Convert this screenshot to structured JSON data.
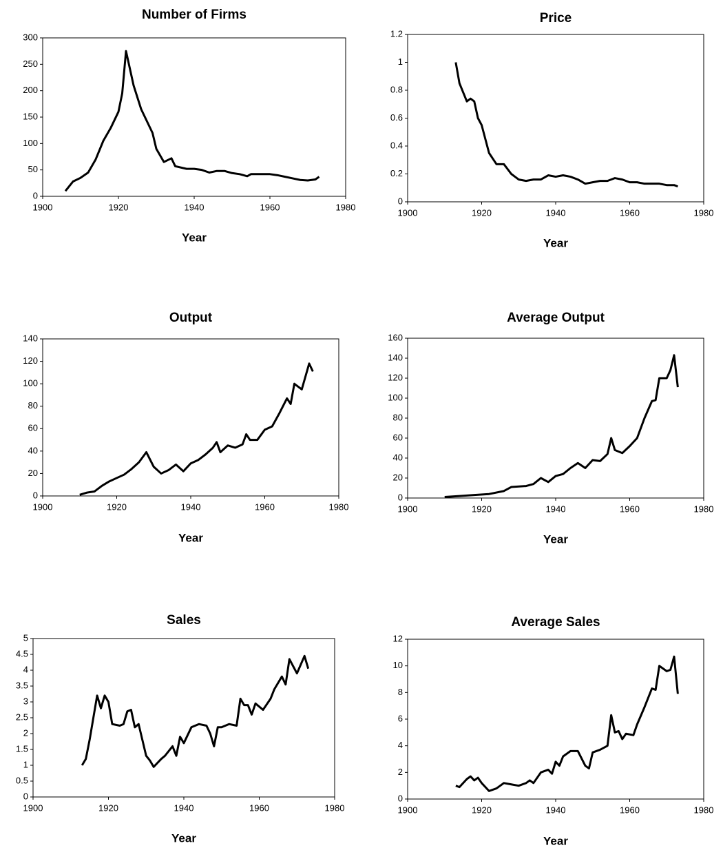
{
  "chart_data": [
    {
      "type": "line",
      "title": "Number of Firms",
      "x_label": "Year",
      "color": "#000000",
      "x": [
        1906,
        1908,
        1910,
        1912,
        1914,
        1916,
        1918,
        1920,
        1921,
        1922,
        1924,
        1926,
        1928,
        1929,
        1930,
        1932,
        1934,
        1935,
        1938,
        1940,
        1942,
        1944,
        1946,
        1948,
        1950,
        1952,
        1954,
        1955,
        1958,
        1960,
        1962,
        1964,
        1966,
        1968,
        1970,
        1972,
        1973
      ],
      "values": [
        10,
        28,
        35,
        45,
        70,
        105,
        130,
        160,
        195,
        275,
        210,
        165,
        135,
        120,
        90,
        65,
        72,
        57,
        52,
        52,
        50,
        45,
        48,
        48,
        44,
        42,
        38,
        42,
        42,
        42,
        40,
        37,
        34,
        31,
        30,
        32,
        37
      ],
      "xlim": [
        1900,
        1980
      ],
      "ylim": [
        0,
        300
      ],
      "xticks": [
        1900,
        1920,
        1940,
        1960,
        1980
      ],
      "yticks": [
        0,
        50,
        100,
        150,
        200,
        250,
        300
      ]
    },
    {
      "type": "line",
      "title": "Price",
      "x_label": "Year",
      "color": "#000000",
      "x": [
        1913,
        1914,
        1916,
        1917,
        1918,
        1919,
        1920,
        1922,
        1924,
        1926,
        1928,
        1930,
        1932,
        1934,
        1936,
        1938,
        1940,
        1942,
        1944,
        1946,
        1948,
        1950,
        1952,
        1954,
        1956,
        1958,
        1960,
        1962,
        1964,
        1966,
        1968,
        1970,
        1972,
        1973
      ],
      "values": [
        1.0,
        0.85,
        0.72,
        0.74,
        0.72,
        0.6,
        0.55,
        0.35,
        0.27,
        0.27,
        0.2,
        0.16,
        0.15,
        0.16,
        0.16,
        0.19,
        0.18,
        0.19,
        0.18,
        0.16,
        0.13,
        0.14,
        0.15,
        0.15,
        0.17,
        0.16,
        0.14,
        0.14,
        0.13,
        0.13,
        0.13,
        0.12,
        0.12,
        0.11
      ],
      "xlim": [
        1900,
        1980
      ],
      "ylim": [
        0,
        1.2
      ],
      "xticks": [
        1900,
        1920,
        1940,
        1960,
        1980
      ],
      "yticks": [
        0,
        0.2,
        0.4,
        0.6,
        0.8,
        1,
        1.2
      ]
    },
    {
      "type": "line",
      "title": "Output",
      "x_label": "Year",
      "color": "#000000",
      "x": [
        1910,
        1912,
        1914,
        1916,
        1918,
        1920,
        1922,
        1924,
        1926,
        1928,
        1930,
        1932,
        1934,
        1936,
        1938,
        1940,
        1942,
        1944,
        1946,
        1947,
        1948,
        1950,
        1952,
        1954,
        1955,
        1956,
        1958,
        1960,
        1962,
        1964,
        1966,
        1967,
        1968,
        1970,
        1972,
        1973
      ],
      "values": [
        1,
        3,
        4,
        9,
        13,
        16,
        19,
        24,
        30,
        39,
        26,
        20,
        23,
        28,
        22,
        29,
        32,
        37,
        43,
        48,
        39,
        45,
        43,
        46,
        55,
        50,
        50,
        59,
        62,
        74,
        87,
        82,
        100,
        95,
        118,
        111
      ],
      "xlim": [
        1900,
        1980
      ],
      "ylim": [
        0,
        140
      ],
      "xticks": [
        1900,
        1920,
        1940,
        1960,
        1980
      ],
      "yticks": [
        0,
        20,
        40,
        60,
        80,
        100,
        120,
        140
      ]
    },
    {
      "type": "line",
      "title": "Average Output",
      "x_label": "Year",
      "color": "#000000",
      "x": [
        1910,
        1914,
        1918,
        1922,
        1926,
        1928,
        1932,
        1934,
        1936,
        1938,
        1940,
        1942,
        1944,
        1946,
        1948,
        1950,
        1952,
        1954,
        1955,
        1956,
        1958,
        1960,
        1962,
        1964,
        1966,
        1967,
        1968,
        1970,
        1971,
        1972,
        1973
      ],
      "values": [
        1,
        2,
        3,
        4,
        7,
        11,
        12,
        14,
        20,
        16,
        22,
        24,
        30,
        35,
        30,
        38,
        37,
        44,
        60,
        48,
        45,
        52,
        60,
        80,
        97,
        98,
        120,
        120,
        128,
        143,
        111
      ],
      "xlim": [
        1900,
        1980
      ],
      "ylim": [
        0,
        160
      ],
      "xticks": [
        1900,
        1920,
        1940,
        1960,
        1980
      ],
      "yticks": [
        0,
        20,
        40,
        60,
        80,
        100,
        120,
        140,
        160
      ]
    },
    {
      "type": "line",
      "title": "Sales",
      "x_label": "Year",
      "color": "#000000",
      "x": [
        1913,
        1914,
        1915,
        1916,
        1917,
        1918,
        1919,
        1920,
        1921,
        1923,
        1924,
        1925,
        1926,
        1927,
        1928,
        1929,
        1930,
        1931,
        1932,
        1934,
        1935,
        1937,
        1938,
        1939,
        1940,
        1942,
        1944,
        1946,
        1947,
        1948,
        1949,
        1950,
        1952,
        1954,
        1955,
        1956,
        1957,
        1958,
        1959,
        1961,
        1963,
        1964,
        1966,
        1967,
        1968,
        1970,
        1972,
        1973
      ],
      "values": [
        1.0,
        1.2,
        1.8,
        2.5,
        3.2,
        2.8,
        3.2,
        3.0,
        2.3,
        2.25,
        2.3,
        2.7,
        2.75,
        2.2,
        2.3,
        1.8,
        1.3,
        1.15,
        0.95,
        1.2,
        1.3,
        1.6,
        1.3,
        1.9,
        1.7,
        2.2,
        2.3,
        2.25,
        2.0,
        1.6,
        2.2,
        2.2,
        2.3,
        2.25,
        3.1,
        2.9,
        2.9,
        2.6,
        2.95,
        2.75,
        3.1,
        3.4,
        3.8,
        3.55,
        4.35,
        3.9,
        4.45,
        4.05
      ],
      "xlim": [
        1900,
        1980
      ],
      "ylim": [
        0,
        5
      ],
      "xticks": [
        1900,
        1920,
        1940,
        1960,
        1980
      ],
      "yticks": [
        0,
        0.5,
        1,
        1.5,
        2,
        2.5,
        3,
        3.5,
        4,
        4.5,
        5
      ]
    },
    {
      "type": "line",
      "title": "Average Sales",
      "x_label": "Year",
      "color": "#000000",
      "x": [
        1913,
        1914,
        1916,
        1917,
        1918,
        1919,
        1920,
        1922,
        1924,
        1926,
        1928,
        1930,
        1932,
        1933,
        1934,
        1936,
        1938,
        1939,
        1940,
        1941,
        1942,
        1944,
        1946,
        1948,
        1949,
        1950,
        1952,
        1954,
        1955,
        1956,
        1957,
        1958,
        1959,
        1961,
        1962,
        1964,
        1966,
        1967,
        1968,
        1970,
        1971,
        1972,
        1973
      ],
      "values": [
        1.0,
        0.9,
        1.5,
        1.7,
        1.4,
        1.6,
        1.2,
        0.6,
        0.8,
        1.2,
        1.1,
        1.0,
        1.2,
        1.4,
        1.2,
        2.0,
        2.2,
        1.9,
        2.8,
        2.5,
        3.2,
        3.6,
        3.6,
        2.5,
        2.3,
        3.5,
        3.7,
        4.0,
        6.3,
        5.0,
        5.1,
        4.5,
        4.9,
        4.8,
        5.6,
        6.9,
        8.3,
        8.2,
        10.0,
        9.6,
        9.7,
        10.7,
        7.9
      ],
      "xlim": [
        1900,
        1980
      ],
      "ylim": [
        0,
        12
      ],
      "xticks": [
        1900,
        1920,
        1940,
        1960,
        1980
      ],
      "yticks": [
        0,
        2,
        4,
        6,
        8,
        10,
        12
      ]
    }
  ]
}
